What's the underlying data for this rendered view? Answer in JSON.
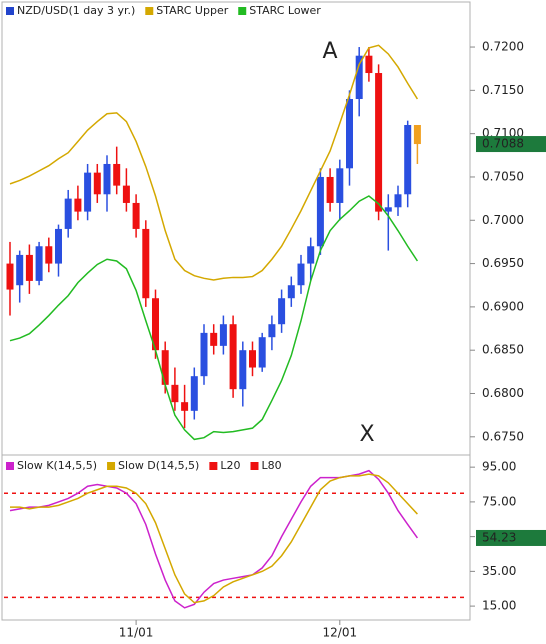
{
  "chart_data": [
    {
      "type": "candlestick",
      "series": [
        {
          "name": "NZD/USD(1 day  3 yr.)",
          "color": "#2244cc",
          "up_color": "#2a4fe0",
          "down_color": "#ee1111",
          "last_color": "#f0a020",
          "open": [
            0.695,
            0.6925,
            0.696,
            0.693,
            0.697,
            0.695,
            0.699,
            0.7025,
            0.701,
            0.7055,
            0.703,
            0.7065,
            0.704,
            0.702,
            0.699,
            0.691,
            0.685,
            0.681,
            0.679,
            0.678,
            0.682,
            0.687,
            0.6855,
            0.688,
            0.6805,
            0.685,
            0.683,
            0.6865,
            0.688,
            0.691,
            0.6925,
            0.695,
            0.697,
            0.705,
            0.702,
            0.706,
            0.714,
            0.719,
            0.717,
            0.701,
            0.7015,
            0.703,
            0.711
          ],
          "high": [
            0.6975,
            0.6965,
            0.6972,
            0.6975,
            0.698,
            0.6995,
            0.7035,
            0.704,
            0.7065,
            0.7065,
            0.7075,
            0.7085,
            0.706,
            0.703,
            0.7,
            0.692,
            0.686,
            0.683,
            0.681,
            0.683,
            0.688,
            0.688,
            0.689,
            0.689,
            0.686,
            0.686,
            0.687,
            0.689,
            0.692,
            0.6935,
            0.696,
            0.698,
            0.706,
            0.706,
            0.707,
            0.715,
            0.72,
            0.72,
            0.718,
            0.703,
            0.704,
            0.7115,
            0.711
          ],
          "low": [
            0.689,
            0.6905,
            0.6915,
            0.6925,
            0.694,
            0.6935,
            0.698,
            0.7,
            0.7,
            0.702,
            0.701,
            0.703,
            0.701,
            0.698,
            0.69,
            0.684,
            0.68,
            0.678,
            0.676,
            0.677,
            0.681,
            0.6845,
            0.6845,
            0.6795,
            0.6785,
            0.682,
            0.6825,
            0.685,
            0.687,
            0.69,
            0.6915,
            0.693,
            0.696,
            0.701,
            0.7,
            0.704,
            0.712,
            0.716,
            0.7,
            0.6965,
            0.7005,
            0.7015,
            0.7065
          ],
          "close": [
            0.692,
            0.696,
            0.693,
            0.697,
            0.695,
            0.699,
            0.7025,
            0.701,
            0.7055,
            0.703,
            0.7065,
            0.704,
            0.702,
            0.699,
            0.691,
            0.685,
            0.681,
            0.679,
            0.678,
            0.682,
            0.687,
            0.6855,
            0.688,
            0.6805,
            0.685,
            0.683,
            0.6865,
            0.688,
            0.691,
            0.6925,
            0.695,
            0.697,
            0.705,
            0.702,
            0.706,
            0.714,
            0.719,
            0.717,
            0.701,
            0.7015,
            0.703,
            0.711,
            0.7088
          ],
          "current_label_color": "#1d7a3c"
        },
        {
          "name": "STARC Upper",
          "color": "#d4a800",
          "values": [
            0.7042,
            0.7046,
            0.7051,
            0.7057,
            0.7063,
            0.7071,
            0.7078,
            0.7091,
            0.7104,
            0.7114,
            0.7123,
            0.7124,
            0.7114,
            0.7091,
            0.7062,
            0.7028,
            0.6988,
            0.6955,
            0.6942,
            0.6936,
            0.6933,
            0.6931,
            0.6933,
            0.6934,
            0.6934,
            0.6935,
            0.6942,
            0.6955,
            0.697,
            0.699,
            0.7011,
            0.7034,
            0.7057,
            0.708,
            0.7112,
            0.7145,
            0.718,
            0.7199,
            0.7202,
            0.7192,
            0.7177,
            0.7158,
            0.714
          ]
        },
        {
          "name": "STARC Lower",
          "color": "#22bb22",
          "values": [
            0.6861,
            0.6864,
            0.6869,
            0.6879,
            0.689,
            0.6902,
            0.6913,
            0.6928,
            0.6939,
            0.6949,
            0.6955,
            0.6953,
            0.6944,
            0.6919,
            0.6884,
            0.685,
            0.681,
            0.6775,
            0.6758,
            0.6747,
            0.6749,
            0.6756,
            0.6755,
            0.6756,
            0.6758,
            0.676,
            0.677,
            0.6792,
            0.6815,
            0.6844,
            0.6884,
            0.693,
            0.6965,
            0.6988,
            0.7001,
            0.7011,
            0.7022,
            0.7028,
            0.7019,
            0.7005,
            0.6988,
            0.697,
            0.6953
          ]
        }
      ],
      "ylim": [
        0.6729,
        0.7252
      ],
      "yticks": [
        {
          "value": 0.72,
          "label": "0.7200"
        },
        {
          "value": 0.715,
          "label": "0.7150"
        },
        {
          "value": 0.71,
          "label": "0.7100"
        },
        {
          "value": 0.705,
          "label": "0.7050"
        },
        {
          "value": 0.7,
          "label": "0.7000"
        },
        {
          "value": 0.695,
          "label": "0.6950"
        },
        {
          "value": 0.69,
          "label": "0.6900"
        },
        {
          "value": 0.685,
          "label": "0.6850"
        },
        {
          "value": 0.68,
          "label": "0.6800"
        },
        {
          "value": 0.675,
          "label": "0.6750"
        }
      ],
      "annotations": [
        "A",
        "X"
      ],
      "annotation_color": "#3366cc"
    },
    {
      "type": "line",
      "categories": [
        null,
        null,
        null,
        null,
        null,
        null,
        null,
        null,
        null,
        null,
        null,
        null,
        null,
        "11/01",
        null,
        null,
        null,
        null,
        null,
        null,
        null,
        null,
        null,
        null,
        null,
        null,
        null,
        null,
        null,
        null,
        null,
        null,
        null,
        null,
        "12/01",
        null,
        null,
        null,
        null,
        null,
        null,
        null,
        null
      ],
      "series": [
        {
          "name": "Slow K(14,5,5)",
          "color": "#cc22cc",
          "values": [
            70,
            71,
            72,
            72,
            73,
            75,
            77,
            80,
            84,
            85,
            84,
            83,
            80,
            74,
            62,
            45,
            30,
            18,
            14,
            16,
            23,
            28,
            30,
            31,
            32,
            33,
            37,
            44,
            55,
            65,
            75,
            84,
            89,
            89,
            89,
            90,
            91,
            93,
            88,
            80,
            70,
            62,
            54.23
          ],
          "current_label_color": "#1d7a3c"
        },
        {
          "name": "Slow D(14,5,5)",
          "color": "#d4a800",
          "values": [
            72,
            72,
            71,
            72,
            72,
            73,
            75,
            77,
            80,
            82,
            84,
            84,
            83,
            80,
            74,
            63,
            48,
            33,
            22,
            17,
            18,
            21,
            26,
            29,
            31,
            33,
            35,
            38,
            44,
            52,
            62,
            72,
            82,
            87,
            89,
            90,
            90,
            91,
            90,
            86,
            80,
            74,
            68
          ]
        }
      ],
      "levels": [
        {
          "name": "L20",
          "color": "#ee1111",
          "value": 20
        },
        {
          "name": "L80",
          "color": "#ee1111",
          "value": 80
        }
      ],
      "ylim": [
        7,
        102
      ],
      "yticks": [
        {
          "value": 95,
          "label": "95.00"
        },
        {
          "value": 75,
          "label": "75.00"
        },
        {
          "value": 55,
          "label": "55.00"
        },
        {
          "value": 35,
          "label": "35.00"
        },
        {
          "value": 15,
          "label": "15.00"
        }
      ]
    }
  ]
}
